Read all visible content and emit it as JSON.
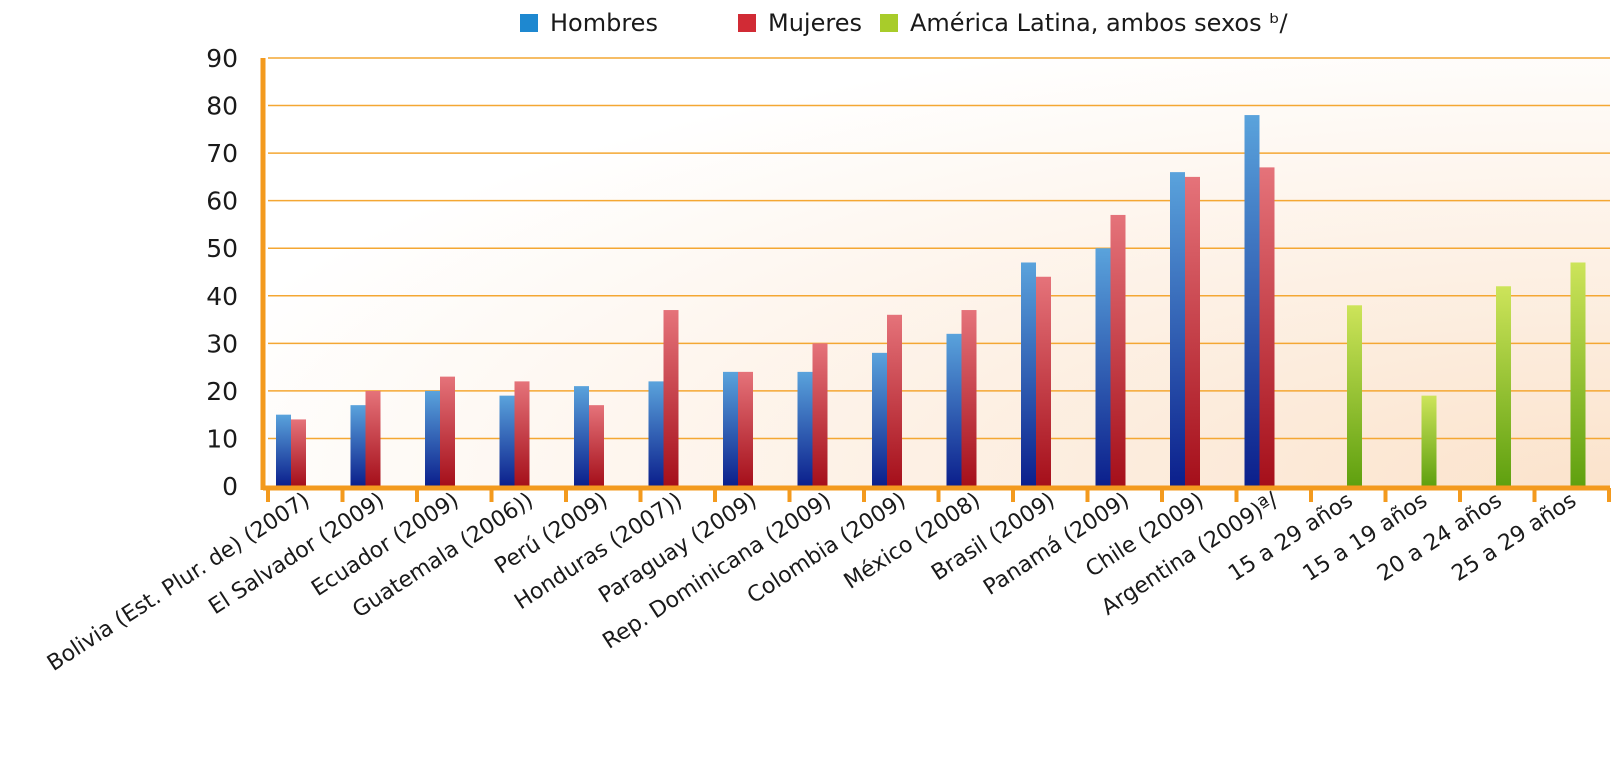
{
  "chart_data": {
    "type": "bar",
    "title": "",
    "xlabel": "",
    "ylabel": "",
    "ylim": [
      0,
      90
    ],
    "yticks": [
      0,
      10,
      20,
      30,
      40,
      50,
      60,
      70,
      80,
      90
    ],
    "grid": true,
    "legend_position": "top-center",
    "categories": [
      "Bolivia (Est. Plur. de) (2007)",
      "El Salvador (2009)",
      "Ecuador (2009)",
      "Guatemala (2006))",
      "Perú (2009)",
      "Honduras (2007))",
      "Paraguay (2009)",
      "Rep. Dominicana (2009)",
      "Colombia (2009)",
      "México (2008)",
      "Brasil (2009)",
      "Panamá (2009)",
      "Chile (2009)",
      "Argentina (2009)ª/",
      "15 a 29 años",
      "15 a 19 años",
      "20 a 24 años",
      "25 a 29 años"
    ],
    "series": [
      {
        "name": "Hombres",
        "color": "#1e88d0",
        "values": [
          15,
          17,
          20,
          19,
          21,
          22,
          24,
          24,
          28,
          32,
          47,
          50,
          66,
          78,
          null,
          null,
          null,
          null
        ]
      },
      {
        "name": "Mujeres",
        "color": "#d12b35",
        "values": [
          14,
          20,
          23,
          22,
          17,
          37,
          24,
          30,
          36,
          37,
          44,
          57,
          65,
          67,
          null,
          null,
          null,
          null
        ]
      },
      {
        "name": "América Latina, ambos sexos ᵇ/",
        "color": "#a8cc2a",
        "values": [
          null,
          null,
          null,
          null,
          null,
          null,
          null,
          null,
          null,
          null,
          null,
          null,
          null,
          null,
          38,
          19,
          42,
          47
        ]
      }
    ],
    "colors": {
      "axis": "#f39a1e",
      "grid": "#f4a733",
      "background_glow": "#fbe3cc",
      "hombres_dark": "#0b1f8c",
      "hombres_light": "#5aa3dc",
      "mujeres_dark": "#a50f1a",
      "mujeres_light": "#e5737a",
      "latam_dark": "#5fa00f",
      "latam_light": "#cde45a"
    }
  }
}
